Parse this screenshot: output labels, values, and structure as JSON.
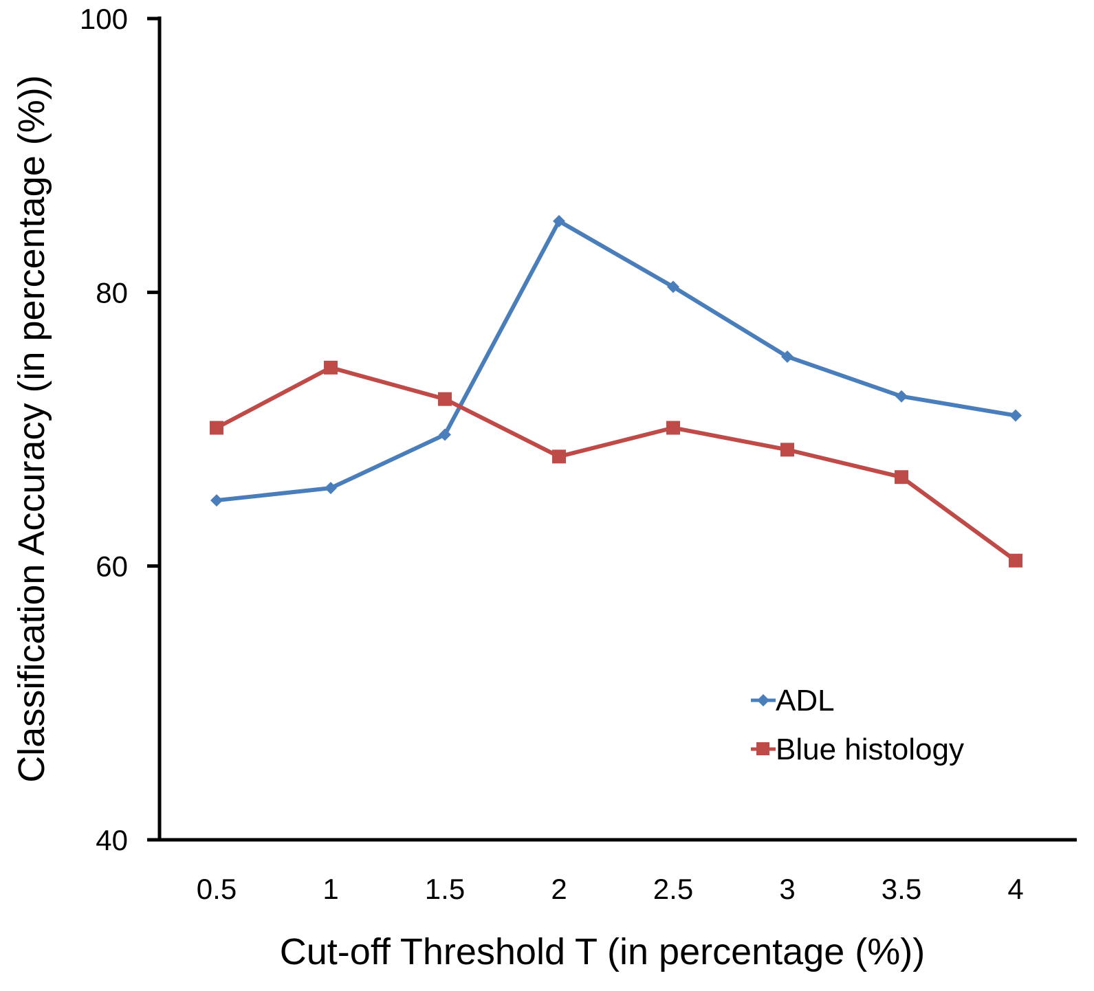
{
  "chart_data": {
    "type": "line",
    "title": "",
    "xlabel": "Cut-off Threshold T (in percentage (%))",
    "ylabel": "Classification Accuracy (in percentage (%))",
    "categories": [
      "0.5",
      "1",
      "1.5",
      "2",
      "2.5",
      "3",
      "3.5",
      "4"
    ],
    "ylim": [
      40,
      100
    ],
    "yticks": [
      "40",
      "60",
      "80",
      "100"
    ],
    "grid": false,
    "legend_position": "bottom-right",
    "series": [
      {
        "name": "ADL",
        "color": "#4a7ebb",
        "marker": "diamond",
        "values": [
          64.8,
          65.7,
          69.6,
          85.2,
          80.4,
          75.3,
          72.4,
          71.0
        ]
      },
      {
        "name": "Blue histology",
        "color": "#be4b48",
        "marker": "square",
        "values": [
          70.1,
          74.5,
          72.2,
          68.0,
          70.1,
          68.5,
          66.5,
          60.4
        ]
      }
    ]
  }
}
